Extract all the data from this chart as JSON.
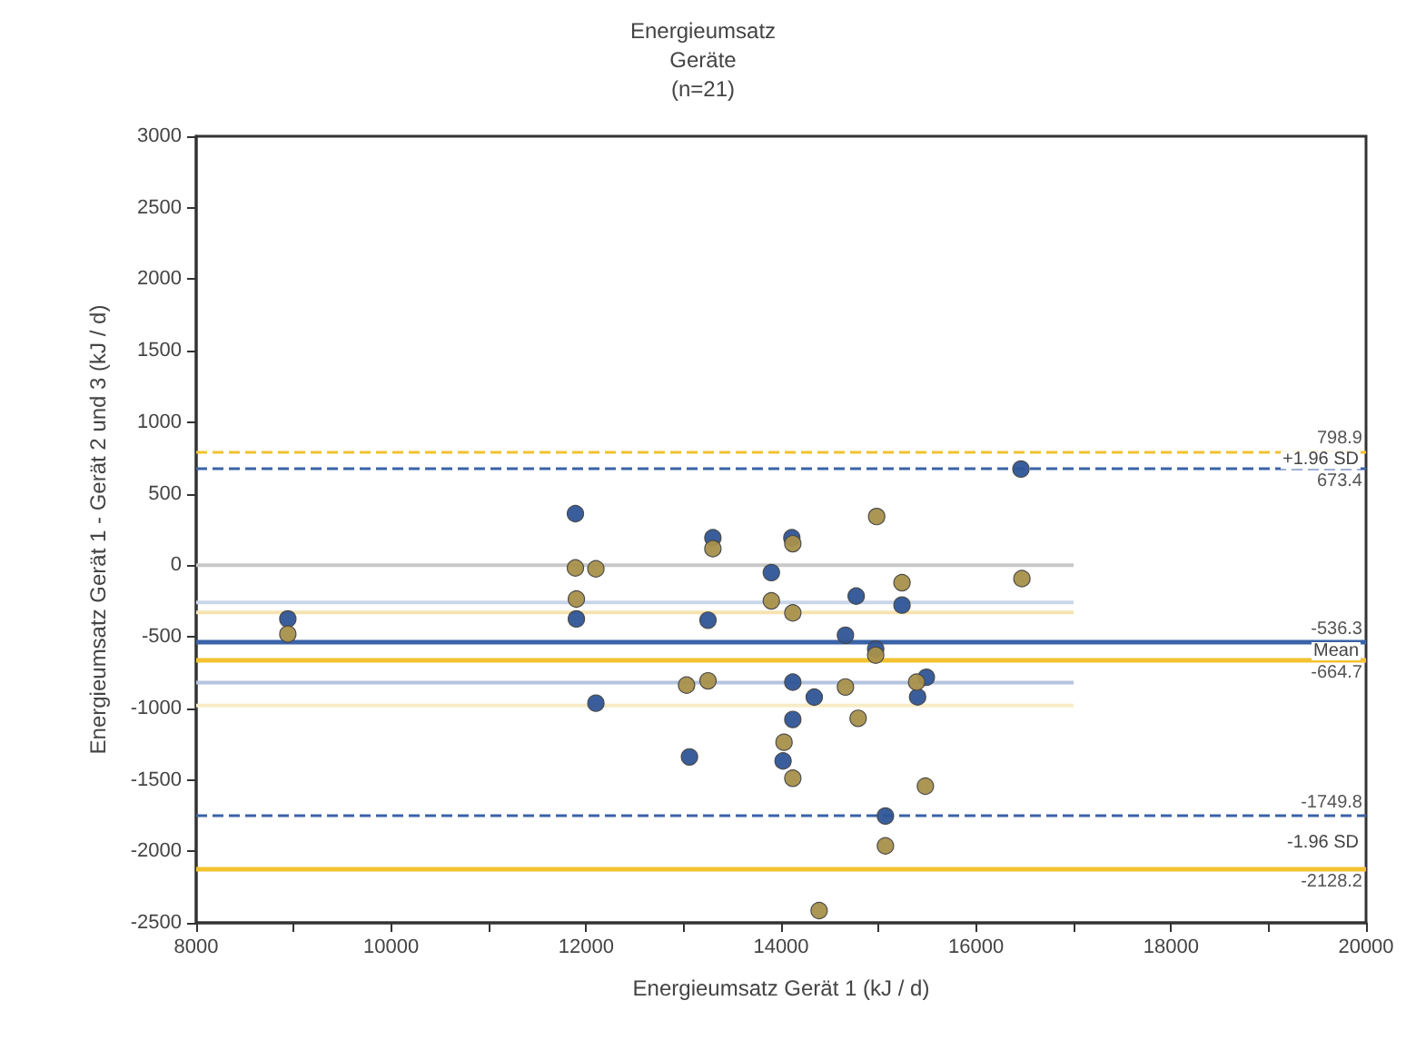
{
  "chart_data": {
    "type": "scatter",
    "title": "Energieumsatz",
    "subtitle": "Geräte",
    "xlabel": "Energieumsatz Gerät 1 (kJ / d)",
    "ylabel": "Energieumsatz Gerät 1 - Gerät 2 und 3 (kJ / d)",
    "xlim": [
      8000,
      20000
    ],
    "ylim": [
      -2500,
      3000
    ],
    "xticks": [
      8000,
      {
        "value": 9000,
        "label": null
      },
      10000,
      {
        "value": 11000,
        "label": null
      },
      12000,
      {
        "value": 13000,
        "label": null
      },
      14000,
      {
        "value": 15000,
        "label": null
      },
      16000,
      {
        "value": 17000,
        "label": null
      },
      18000,
      {
        "value": 19000,
        "label": null
      },
      20000
    ],
    "yticks": [
      -2500,
      -2000,
      -1500,
      -1000,
      -500,
      0,
      500,
      1000,
      1500,
      2000,
      2500,
      3000
    ],
    "grid": false,
    "marker": "circle",
    "series": [
      {
        "color": "#2f5597",
        "x": [
          8940,
          11890,
          11900,
          13300,
          13250,
          12100,
          14110,
          13900,
          14120,
          14340,
          14120,
          13060,
          16460,
          14770,
          15240,
          14660,
          14970,
          15490,
          15400,
          14020,
          15070
        ],
        "values": [
          -375,
          361,
          -375,
          193,
          -384,
          -964,
          193,
          -51,
          -817,
          -922,
          -1078,
          -1340,
          673,
          -215,
          -278,
          -489,
          -586,
          -783,
          -920,
          -1368,
          -1753
        ]
      },
      {
        "color": "#a8904a",
        "x": [
          8940,
          11890,
          12100,
          11900,
          13300,
          13030,
          13250,
          14120,
          13900,
          14120,
          14030,
          14980,
          15240,
          16470,
          14970,
          14660,
          15390,
          14790,
          14120,
          15480,
          15070,
          14390
        ],
        "values": [
          -480,
          -18,
          -25,
          -236,
          117,
          -838,
          -808,
          151,
          -249,
          -333,
          -1237,
          341,
          -122,
          -93,
          -628,
          -851,
          -817,
          -1070,
          -1489,
          -1544,
          -1962,
          -2414
        ]
      },
      {
        "type": "line",
        "marker": "none",
        "color": "#c8c8c8",
        "x": [
          8000,
          17000
        ],
        "values": [
          0,
          0
        ]
      },
      {
        "type": "line",
        "marker": "none",
        "color": "#c9d6ea",
        "x": [
          8000,
          17000
        ],
        "values": [
          -260,
          -260
        ]
      },
      {
        "type": "line",
        "marker": "none",
        "color": "#f6e3b0",
        "x": [
          8000,
          17000
        ],
        "values": [
          -330,
          -330
        ]
      },
      {
        "type": "line",
        "marker": "none",
        "color": "#b4c4e0",
        "x": [
          8000,
          17000
        ],
        "values": [
          -820,
          -820
        ]
      },
      {
        "type": "line",
        "marker": "none",
        "color": "#f8ecc8",
        "x": [
          8000,
          17000
        ],
        "values": [
          -980,
          -980
        ]
      }
    ],
    "ref_lines": [
      {
        "axis": "y",
        "value": 798.9,
        "label": "798.9",
        "color": "#f2c230",
        "line_style": "dashed"
      },
      {
        "axis": "y",
        "value": 673.4,
        "label": "673.4",
        "color": "#3a63a8",
        "line_style": "dashed"
      },
      {
        "axis": "y",
        "value": -536.3,
        "label": "-536.3",
        "color": "#3a63a8",
        "line_style": "solid"
      },
      {
        "axis": "y",
        "value": -664.7,
        "label": "-664.7",
        "color": "#f2c230",
        "line_style": "solid"
      },
      {
        "axis": "y",
        "value": -1749.8,
        "label": "-1749.8",
        "color": "#3a63a8",
        "line_style": "dashed"
      },
      {
        "axis": "y",
        "value": -2128.2,
        "label": "-2128.2",
        "color": "#f2c230",
        "line_style": "solid"
      }
    ],
    "annotations": [
      "(n=21)",
      "+1.96 SD",
      "Mean",
      "-1.96 SD"
    ]
  }
}
